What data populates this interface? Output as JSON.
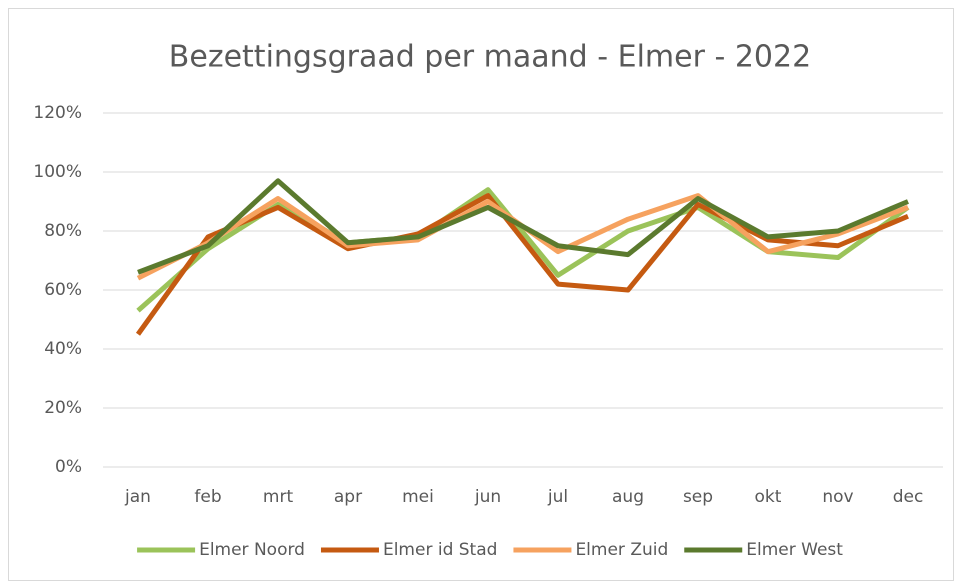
{
  "chart_data": {
    "type": "line",
    "title": "Bezettingsgraad per maand - Elmer - 2022",
    "categories": [
      "jan",
      "feb",
      "mrt",
      "apr",
      "mei",
      "jun",
      "jul",
      "aug",
      "sep",
      "okt",
      "nov",
      "dec"
    ],
    "series": [
      {
        "name": "Elmer Noord",
        "color": "#9bc35a",
        "values": [
          53,
          74,
          89,
          76,
          78,
          94,
          65,
          80,
          88,
          73,
          71,
          88
        ]
      },
      {
        "name": "Elmer id Stad",
        "color": "#c55a11",
        "values": [
          45,
          78,
          88,
          74,
          79,
          92,
          62,
          60,
          89,
          77,
          75,
          85
        ]
      },
      {
        "name": "Elmer Zuid",
        "color": "#f6a25f",
        "values": [
          64,
          76,
          91,
          75,
          77,
          90,
          73,
          84,
          92,
          73,
          79,
          88
        ]
      },
      {
        "name": "Elmer West",
        "color": "#5b7a2e",
        "values": [
          66,
          75,
          97,
          76,
          78,
          88,
          75,
          72,
          91,
          78,
          80,
          90
        ]
      }
    ],
    "ylim": [
      0,
      120
    ],
    "yticks": [
      {
        "value": 0,
        "label": "0%"
      },
      {
        "value": 20,
        "label": "20%"
      },
      {
        "value": 40,
        "label": "40%"
      },
      {
        "value": 60,
        "label": "60%"
      },
      {
        "value": 80,
        "label": "80%"
      },
      {
        "value": 100,
        "label": "100%"
      },
      {
        "value": 120,
        "label": "120%"
      }
    ],
    "grid": true,
    "legend": "bottom"
  }
}
